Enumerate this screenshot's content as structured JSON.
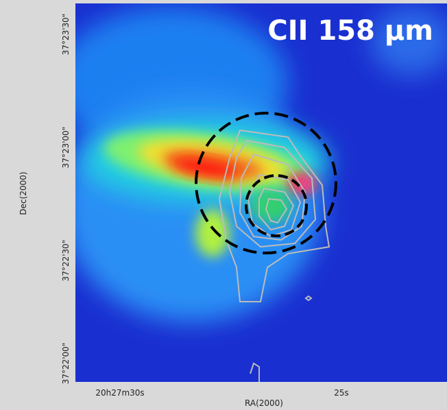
{
  "image": {
    "title": "CII 158 µm"
  },
  "axes": {
    "x_label": "RA(2000)",
    "y_label": "Dec(2000)",
    "x_ticks": [
      "20h27m30s",
      "25s"
    ],
    "y_ticks": [
      "37°23'30\"",
      "37°23'00\"",
      "37°22'30\"",
      "37°22'00\""
    ]
  }
}
